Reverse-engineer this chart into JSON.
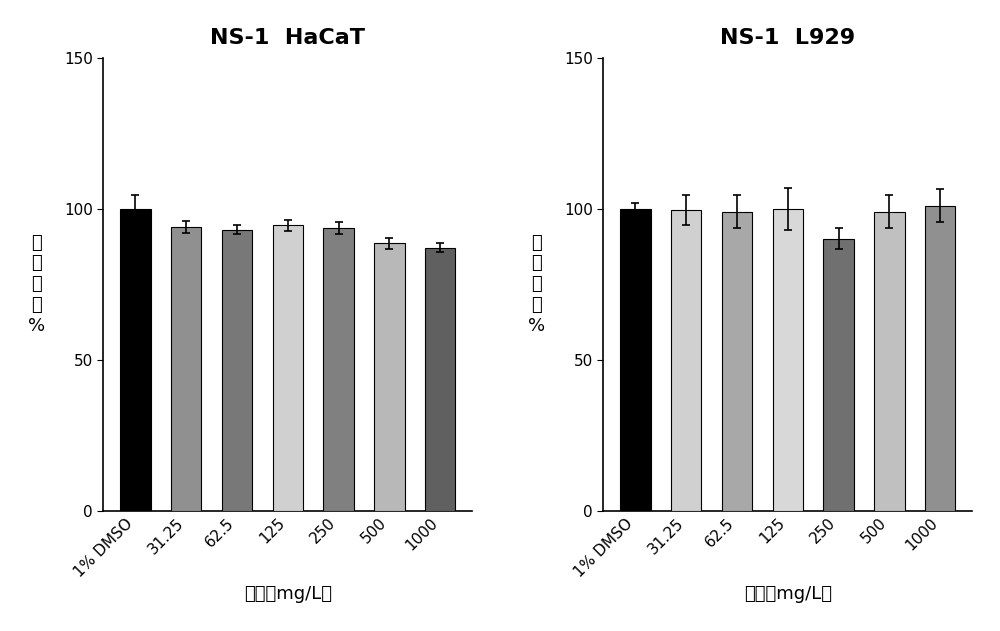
{
  "left_title": "NS-1  HaCaT",
  "right_title": "NS-1  L929",
  "xlabel": "浓度（mg/L）",
  "ylabel": "细胞活力%",
  "categories": [
    "1% DMSO",
    "31.25",
    "62.5",
    "125",
    "250",
    "500",
    "1000"
  ],
  "left_values": [
    100,
    94,
    93,
    94.5,
    93.5,
    88.5,
    87
  ],
  "left_errors": [
    4.5,
    2.0,
    1.5,
    1.8,
    2.0,
    1.8,
    1.5
  ],
  "right_values": [
    100,
    99.5,
    99,
    100,
    90,
    99,
    101
  ],
  "right_errors": [
    2.0,
    5.0,
    5.5,
    7.0,
    3.5,
    5.5,
    5.5
  ],
  "left_colors": [
    "#000000",
    "#909090",
    "#787878",
    "#d0d0d0",
    "#808080",
    "#b8b8b8",
    "#606060"
  ],
  "right_colors": [
    "#000000",
    "#d0d0d0",
    "#a8a8a8",
    "#d8d8d8",
    "#707070",
    "#c0c0c0",
    "#909090"
  ],
  "ylim": [
    0,
    150
  ],
  "yticks": [
    0,
    50,
    100,
    150
  ],
  "bar_width": 0.6,
  "figsize": [
    10.0,
    6.31
  ],
  "dpi": 100,
  "background_color": "#ffffff",
  "title_fontsize": 16,
  "label_fontsize": 13,
  "tick_fontsize": 11,
  "edgecolor": "#000000"
}
